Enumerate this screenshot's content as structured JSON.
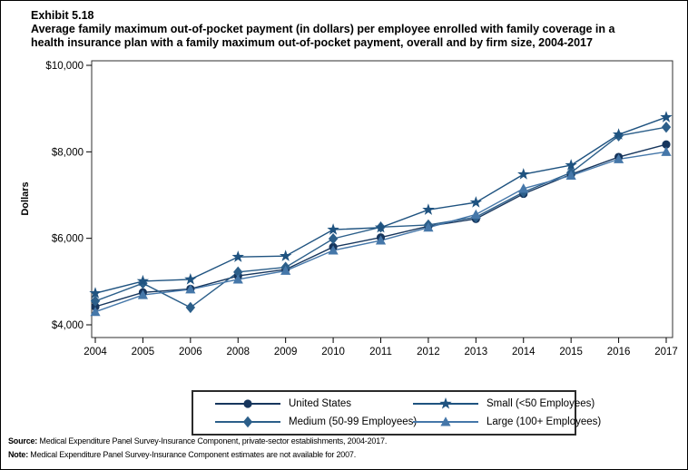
{
  "header": {
    "exhibit": "Exhibit 5.18",
    "title_line1": "Average family maximum out-of-pocket payment (in dollars) per employee enrolled with family coverage in a",
    "title_line2": "health insurance plan with a family maximum out-of-pocket payment, overall and by firm size, 2004-2017"
  },
  "chart_data": {
    "type": "line",
    "ylabel": "Dollars",
    "ylim": [
      4000,
      10000
    ],
    "grid": false,
    "legend_position": "bottom",
    "yticks": [
      {
        "value": 4000,
        "label": "$4,000"
      },
      {
        "value": 6000,
        "label": "$6,000"
      },
      {
        "value": 8000,
        "label": "$8,000"
      },
      {
        "value": 10000,
        "label": "$10,000"
      }
    ],
    "categories": [
      "2004",
      "2005",
      "2006",
      "2008",
      "2009",
      "2010",
      "2011",
      "2012",
      "2013",
      "2014",
      "2015",
      "2016",
      "2017"
    ],
    "series": [
      {
        "id": "united-states",
        "name": "United States",
        "marker": "circle",
        "color": "#17365D",
        "values": [
          4420,
          4750,
          4830,
          5130,
          5280,
          5800,
          6020,
          6280,
          6450,
          7030,
          7480,
          7880,
          8170
        ]
      },
      {
        "id": "medium",
        "name": "Medium (50-99 Employees)",
        "marker": "diamond",
        "color": "#2C5F8A",
        "values": [
          4550,
          4960,
          4400,
          5220,
          5330,
          5990,
          6260,
          6310,
          6490,
          7070,
          7520,
          8370,
          8570
        ]
      },
      {
        "id": "small",
        "name": "Small (<50 Employees)",
        "marker": "star",
        "color": "#1F5380",
        "values": [
          4730,
          5010,
          5050,
          5570,
          5590,
          6200,
          6250,
          6660,
          6830,
          7480,
          7690,
          8400,
          8800
        ]
      },
      {
        "id": "large",
        "name": "Large (100+ Employees)",
        "marker": "triangle",
        "color": "#4577A9",
        "values": [
          4300,
          4690,
          4820,
          5050,
          5250,
          5720,
          5950,
          6250,
          6550,
          7150,
          7450,
          7830,
          8000
        ]
      }
    ]
  },
  "footer": {
    "source_label": "Source:",
    "source_text": " Medical Expenditure Panel Survey-Insurance Component, private-sector establishments, 2004-2017.",
    "note_label": "Note:",
    "note_text": " Medical Expenditure Panel Survey-Insurance Component estimates are not available for 2007."
  }
}
